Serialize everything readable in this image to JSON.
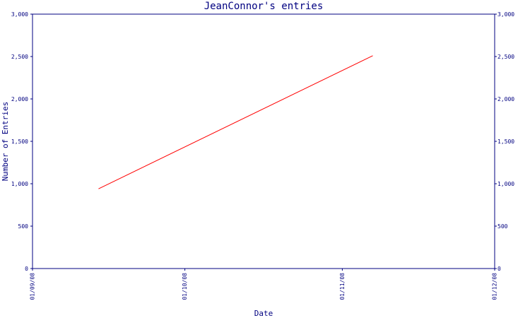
{
  "chart_data": {
    "type": "line",
    "title": "JeanConnor's entries",
    "xlabel": "Date",
    "ylabel": "Number of Entries",
    "x_ticks": [
      "01/09/08",
      "01/10/08",
      "01/11/08",
      "01/12/08"
    ],
    "xlim": [
      "2008-09-01",
      "2008-12-01"
    ],
    "y_ticks": [
      "0",
      "500",
      "1,000",
      "1,500",
      "2,000",
      "2,500",
      "3,000"
    ],
    "y_tick_values": [
      0,
      500,
      1000,
      1500,
      2000,
      2500,
      3000
    ],
    "ylim": [
      0,
      3000
    ],
    "right_axis_mirror": true,
    "grid": false,
    "series": [
      {
        "color": "#ff0000",
        "points": [
          {
            "x": "2008-09-14",
            "y": 940
          },
          {
            "x": "2008-11-07",
            "y": 2510
          }
        ]
      }
    ]
  }
}
